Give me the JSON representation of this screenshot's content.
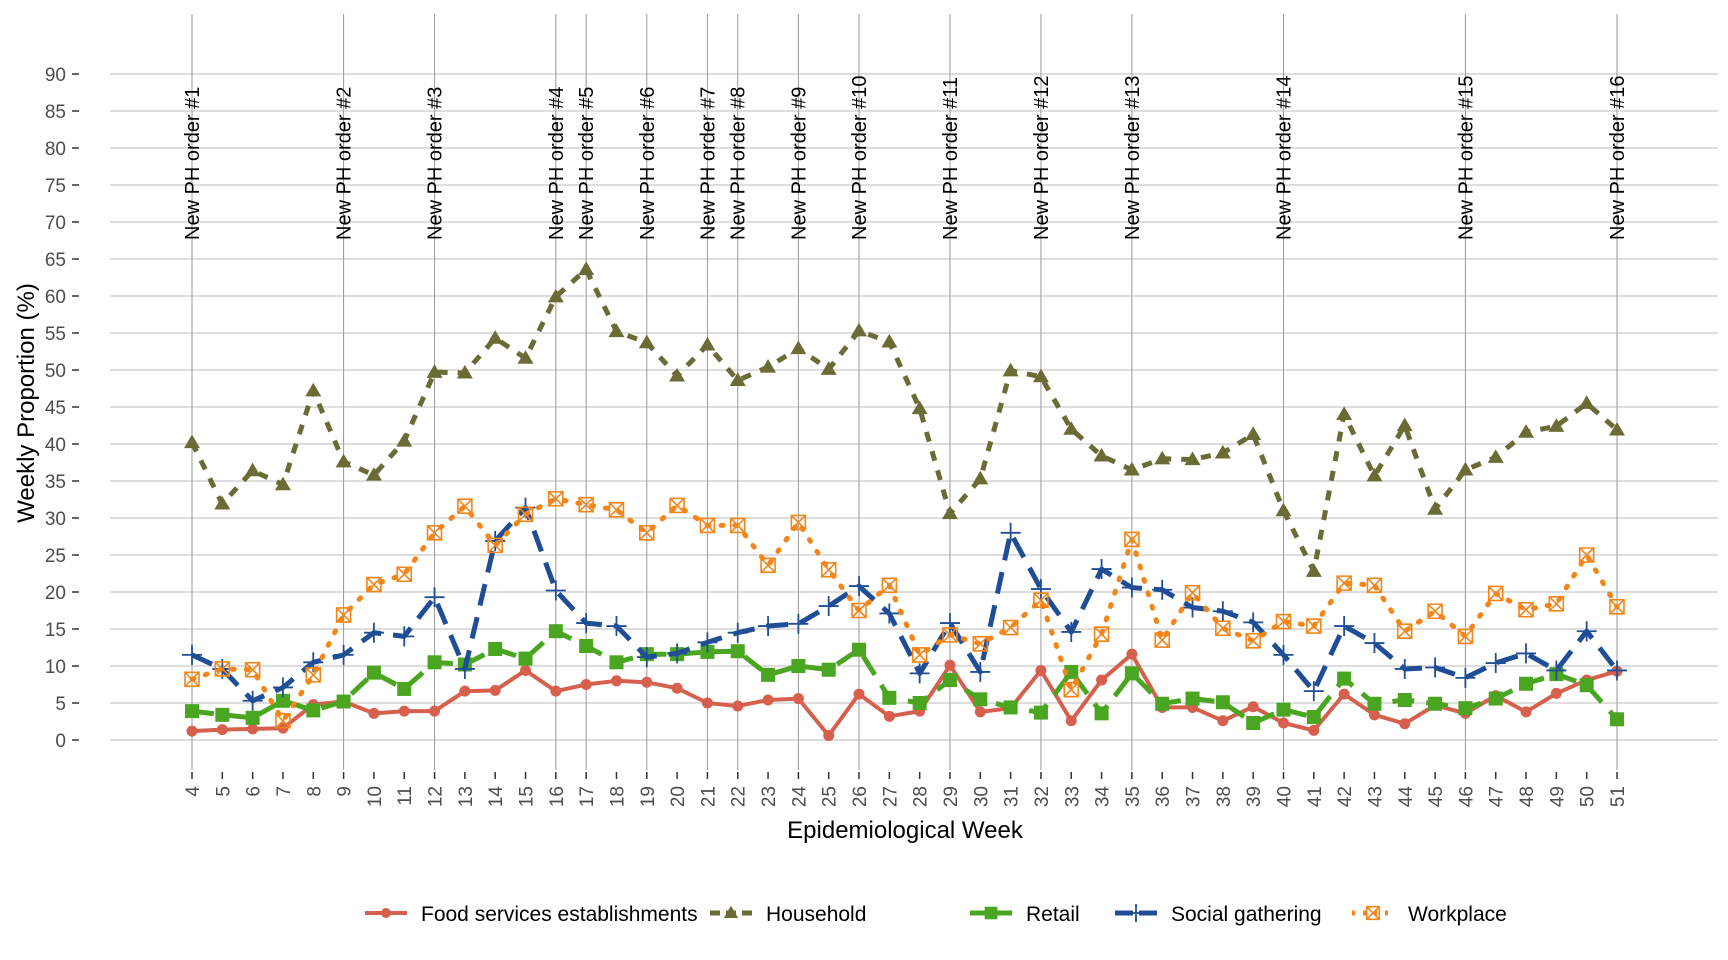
{
  "chart_data": {
    "type": "line",
    "title": "",
    "xlabel": "Epidemiological Week",
    "ylabel": "Weekly Proportion (%)",
    "ylim": [
      -5,
      95
    ],
    "yticks": [
      0,
      5,
      10,
      15,
      20,
      25,
      30,
      35,
      40,
      45,
      50,
      55,
      60,
      65,
      70,
      75,
      80,
      85,
      90
    ],
    "x": [
      4,
      5,
      6,
      7,
      8,
      9,
      10,
      11,
      12,
      13,
      14,
      15,
      16,
      17,
      18,
      19,
      20,
      21,
      22,
      23,
      24,
      25,
      26,
      27,
      28,
      29,
      30,
      31,
      32,
      33,
      34,
      35,
      36,
      37,
      38,
      39,
      40,
      41,
      42,
      43,
      44,
      45,
      46,
      47,
      48,
      49,
      50,
      51
    ],
    "grid": true,
    "legend_position": "bottom",
    "ph_orders": [
      {
        "label": "New PH order #1",
        "week": 4
      },
      {
        "label": "New PH order #2",
        "week": 9
      },
      {
        "label": "New PH order #3",
        "week": 12
      },
      {
        "label": "New PH order #4",
        "week": 16
      },
      {
        "label": "New PH order #5",
        "week": 17
      },
      {
        "label": "New PH order #6",
        "week": 19
      },
      {
        "label": "New PH order #7",
        "week": 21
      },
      {
        "label": "New PH order #8",
        "week": 22
      },
      {
        "label": "New PH order #9",
        "week": 24
      },
      {
        "label": "New PH order #10",
        "week": 26
      },
      {
        "label": "New PH order #11",
        "week": 29
      },
      {
        "label": "New PH order #12",
        "week": 32
      },
      {
        "label": "New PH order #13",
        "week": 35
      },
      {
        "label": "New PH order #14",
        "week": 40
      },
      {
        "label": "New PH order #15",
        "week": 46
      },
      {
        "label": "New PH order #16",
        "week": 51
      }
    ],
    "series": [
      {
        "name": "Food services establishments",
        "color": "#d6604d",
        "marker": "circle",
        "dash": "solid",
        "values": [
          1.2,
          1.4,
          1.5,
          1.6,
          4.8,
          5.2,
          3.6,
          3.9,
          3.9,
          6.6,
          6.7,
          9.4,
          6.6,
          7.5,
          8.0,
          7.8,
          7.0,
          5.0,
          4.6,
          5.4,
          5.6,
          0.6,
          6.2,
          3.2,
          3.9,
          10.1,
          3.8,
          4.3,
          9.4,
          2.6,
          8.1,
          11.6,
          4.4,
          4.4,
          2.6,
          4.5,
          2.3,
          1.3,
          6.2,
          3.4,
          2.2,
          4.7,
          3.6,
          6.0,
          3.8,
          6.3,
          8.1,
          9.3
        ]
      },
      {
        "name": "Household",
        "color": "#6b6b35",
        "marker": "triangle",
        "dash": "dashed",
        "values": [
          40.2,
          31.9,
          36.4,
          34.5,
          47.2,
          37.6,
          35.8,
          40.4,
          49.7,
          49.6,
          54.3,
          51.6,
          59.9,
          63.6,
          55.2,
          53.7,
          49.2,
          53.4,
          48.6,
          50.4,
          52.9,
          50.1,
          55.3,
          53.8,
          44.8,
          30.6,
          35.3,
          49.9,
          49.1,
          42.0,
          38.4,
          36.5,
          38.0,
          37.9,
          38.8,
          41.3,
          31.0,
          22.8,
          44.0,
          35.7,
          42.5,
          31.2,
          36.5,
          38.2,
          41.6,
          42.4,
          45.5,
          41.9
        ]
      },
      {
        "name": "Retail",
        "color": "#4aa520",
        "marker": "square",
        "dash": "longdash",
        "values": [
          3.9,
          3.4,
          3.0,
          5.3,
          4.0,
          5.2,
          9.1,
          6.9,
          10.5,
          10.2,
          12.3,
          11.0,
          14.7,
          12.7,
          10.5,
          11.6,
          11.6,
          11.9,
          12.0,
          8.8,
          10.0,
          9.5,
          12.2,
          5.7,
          5.0,
          8.1,
          5.5,
          4.4,
          3.7,
          9.2,
          3.6,
          9.0,
          4.9,
          5.6,
          5.1,
          2.3,
          4.1,
          3.1,
          8.3,
          4.9,
          5.4,
          4.9,
          4.3,
          5.6,
          7.6,
          8.9,
          7.4,
          2.8
        ]
      },
      {
        "name": "Social gathering",
        "color": "#1f4e96",
        "marker": "plus",
        "dash": "longdash",
        "values": [
          11.5,
          9.6,
          5.3,
          7.1,
          10.5,
          11.5,
          14.5,
          14.0,
          19.3,
          9.6,
          26.9,
          31.4,
          20.2,
          15.8,
          15.4,
          11.2,
          11.7,
          13.2,
          14.5,
          15.4,
          15.7,
          18.1,
          20.8,
          17.1,
          9.0,
          15.8,
          9.2,
          28.0,
          20.4,
          14.6,
          23.1,
          20.6,
          20.3,
          17.9,
          17.4,
          15.9,
          11.5,
          6.6,
          15.4,
          13.1,
          9.6,
          9.8,
          8.4,
          10.4,
          11.7,
          9.4,
          14.7,
          9.4
        ]
      },
      {
        "name": "Workplace",
        "color": "#f58518",
        "marker": "squarex",
        "dash": "dotted",
        "values": [
          8.2,
          9.6,
          9.5,
          2.6,
          8.8,
          16.9,
          21.0,
          22.4,
          28.0,
          31.6,
          26.3,
          30.5,
          32.6,
          31.8,
          31.1,
          28.0,
          31.7,
          29.0,
          29.0,
          23.6,
          29.4,
          23.0,
          17.5,
          20.9,
          11.5,
          14.2,
          13.0,
          15.2,
          18.9,
          6.8,
          14.3,
          27.1,
          13.5,
          19.9,
          15.1,
          13.4,
          16.0,
          15.4,
          21.2,
          20.9,
          14.7,
          17.4,
          14.0,
          19.8,
          17.6,
          18.4,
          25.0,
          18.0
        ]
      }
    ]
  }
}
